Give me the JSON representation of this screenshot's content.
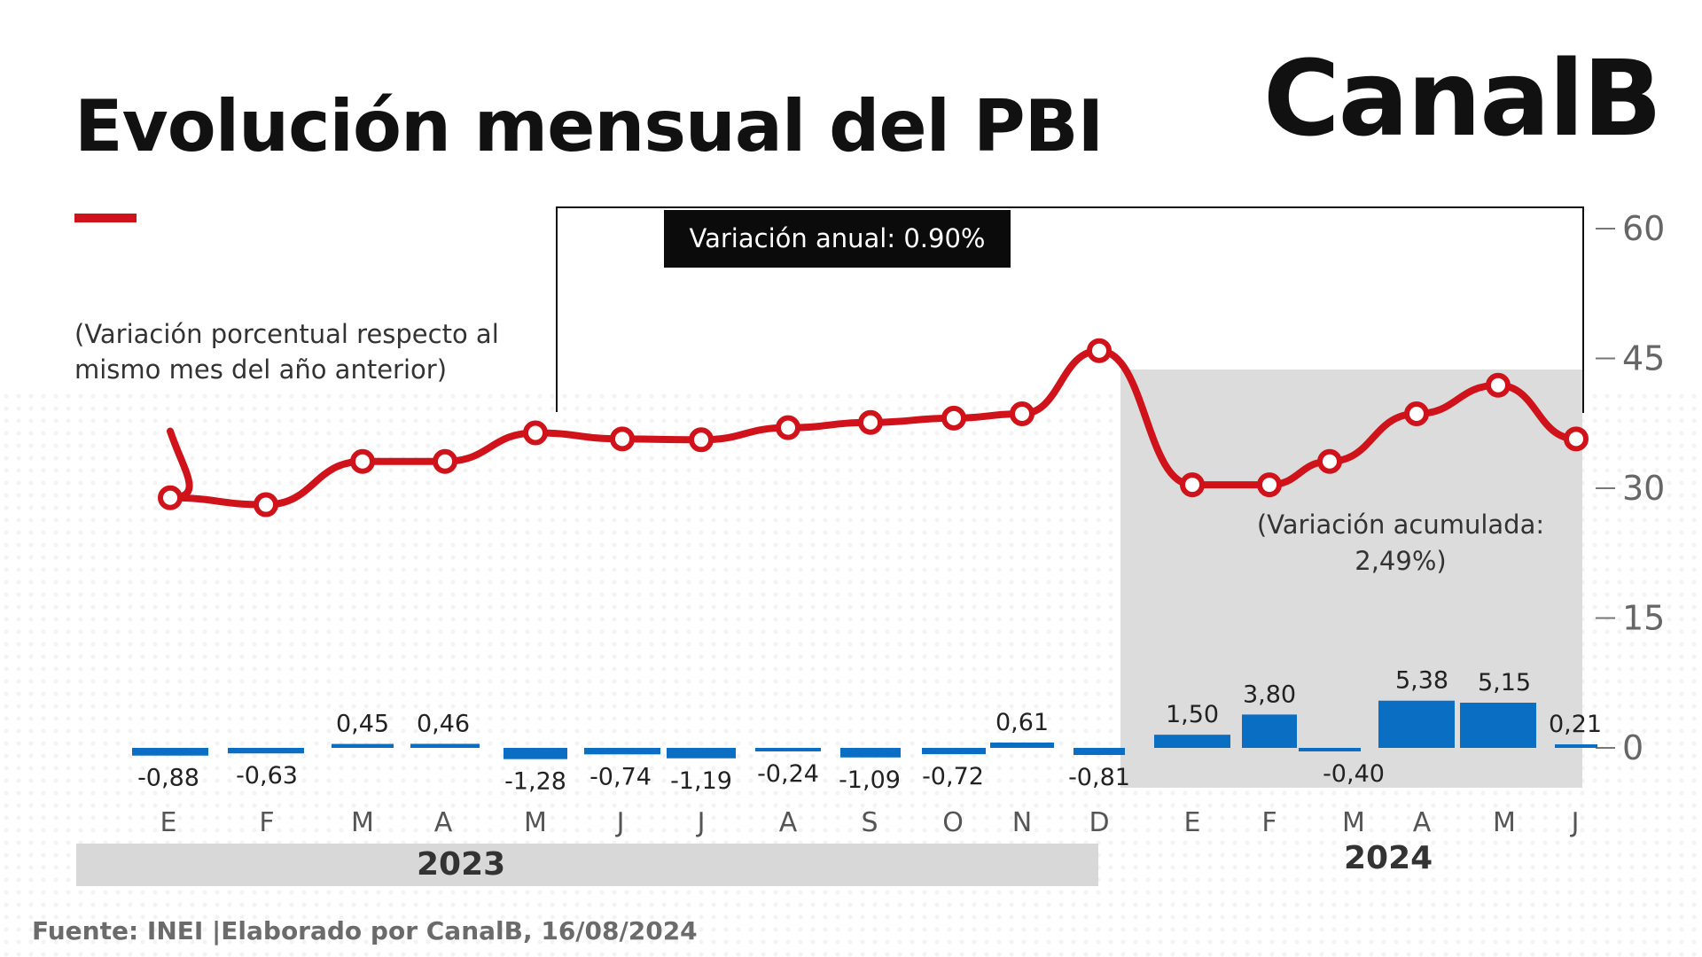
{
  "header": {
    "title": "Evolución mensual del PBI",
    "logo": "CanalB",
    "subtitle": "(Variación porcentual respecto al mismo mes del año anterior)",
    "annual_badge": "Variación anual: 0.90%",
    "accumulated_note": "(Variación acumulada: 2,49%)"
  },
  "footer": {
    "source": "Fuente: INEI |Elaborado por CanalB, 16/08/2024",
    "year_2023": "2023",
    "year_2024": "2024"
  },
  "colors": {
    "line": "#d0121b",
    "bar": "#0a6fc2",
    "highlight_bg": "#dcdcdc",
    "badge_bg": "#0b0b0b"
  },
  "chart_data": {
    "type": "bar",
    "categories": [
      "E",
      "F",
      "M",
      "A",
      "M",
      "J",
      "J",
      "A",
      "S",
      "O",
      "N",
      "D",
      "E",
      "F",
      "M",
      "A",
      "M",
      "J"
    ],
    "years": [
      {
        "label": "2023",
        "months": 12
      },
      {
        "label": "2024",
        "months": 6
      }
    ],
    "value_labels": [
      "-0,88",
      "-0,63",
      "0,45",
      "0,46",
      "-1,28",
      "-0,74",
      "-1,19",
      "-0,24",
      "-1,09",
      "-0,72",
      "0,61",
      "-0,81",
      "1,50",
      "3,80",
      "-0,40",
      "5,38",
      "5,15",
      "0,21"
    ],
    "series": [
      {
        "type": "bar",
        "values": [
          -0.88,
          -0.63,
          0.45,
          0.46,
          -1.28,
          -0.74,
          -1.19,
          -0.24,
          -1.09,
          -0.72,
          0.61,
          -0.81,
          1.5,
          3.8,
          -0.4,
          5.38,
          5.15,
          0.21
        ]
      },
      {
        "type": "line",
        "values": [
          28.9,
          28.1,
          33.1,
          33.1,
          36.4,
          35.7,
          35.6,
          37.0,
          37.6,
          38.1,
          38.6,
          45.9,
          30.4,
          30.4,
          33.1,
          38.6,
          41.9,
          35.7
        ]
      }
    ],
    "y_axis": {
      "position": "right",
      "ticks": [
        0,
        15,
        30,
        45,
        60
      ],
      "range": [
        0,
        60
      ]
    },
    "highlight_months": "E 2024 - J 2024",
    "grid": false,
    "legend": "none"
  }
}
